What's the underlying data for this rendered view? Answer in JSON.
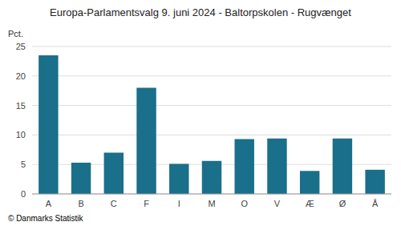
{
  "chart_data": {
    "type": "bar",
    "title": "Europa-Parlamentsvalg 9. juni 2024 - Baltorpskolen - Rugvænget",
    "ylabel": "Pct.",
    "footer": "© Danmarks Statistik",
    "categories": [
      "A",
      "B",
      "C",
      "F",
      "I",
      "M",
      "O",
      "V",
      "Æ",
      "Ø",
      "Å"
    ],
    "values": [
      23.5,
      5.3,
      7.0,
      18.0,
      5.1,
      5.6,
      9.3,
      9.4,
      3.9,
      9.4,
      4.1
    ],
    "color": "#1a6f8a",
    "ylim": [
      0,
      25
    ],
    "yticks": [
      0,
      5,
      10,
      15,
      20,
      25
    ],
    "grid": true
  }
}
